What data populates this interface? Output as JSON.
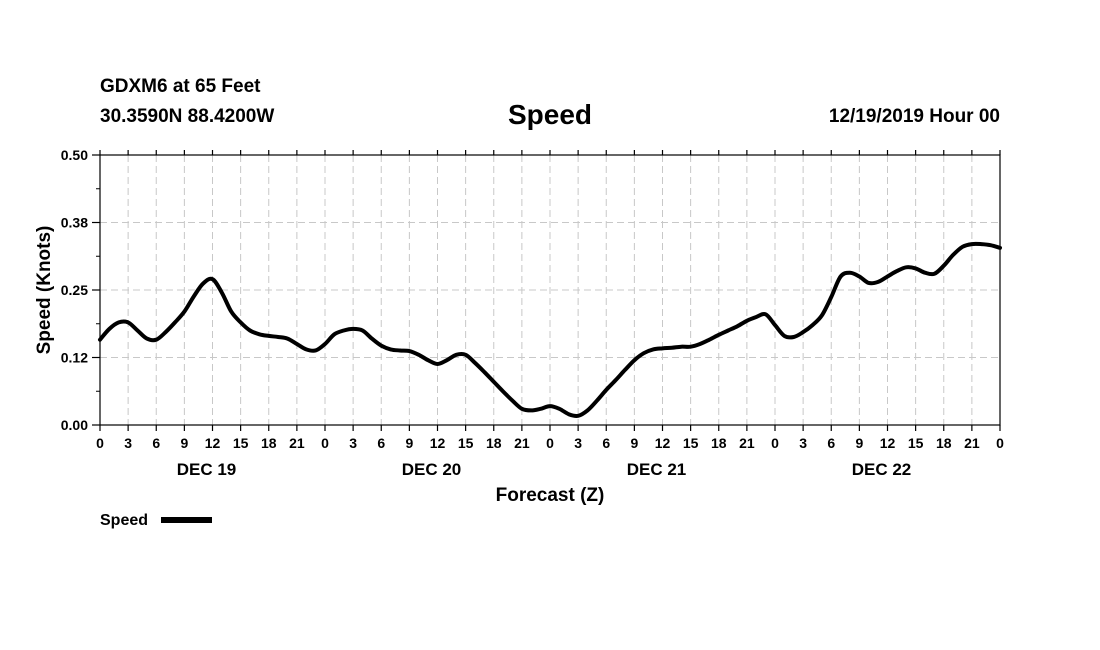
{
  "header": {
    "station": "GDXM6 at 65 Feet",
    "coords": "30.3590N 88.4200W",
    "title": "Speed",
    "datetime": "12/19/2019 Hour 00"
  },
  "chart_data": {
    "type": "line",
    "title": "Speed",
    "xlabel": "Forecast (Z)",
    "ylabel": "Speed (Knots)",
    "ylim": [
      0,
      0.5
    ],
    "yticks": [
      "0.00",
      "0.12",
      "0.25",
      "0.38",
      "0.50"
    ],
    "xlim_hours": [
      0,
      96
    ],
    "xtick_labels": [
      "0",
      "3",
      "6",
      "9",
      "12",
      "15",
      "18",
      "21",
      "0",
      "3",
      "6",
      "9",
      "12",
      "15",
      "18",
      "21",
      "0",
      "3",
      "6",
      "9",
      "12",
      "15",
      "18",
      "21",
      "0",
      "3",
      "6",
      "9",
      "12",
      "15",
      "18",
      "21",
      "0"
    ],
    "day_labels": [
      "DEC 19",
      "DEC 20",
      "DEC 21",
      "DEC 22"
    ],
    "grid": true,
    "legend": "bottom-left",
    "series": [
      {
        "name": "Speed",
        "color": "#000000",
        "x_hours": [
          0,
          1,
          2,
          3,
          4,
          5,
          6,
          7,
          8,
          9,
          10,
          11,
          12,
          13,
          14,
          15,
          16,
          17,
          18,
          19,
          20,
          21,
          22,
          23,
          24,
          25,
          26,
          27,
          28,
          29,
          30,
          31,
          32,
          33,
          34,
          35,
          36,
          37,
          38,
          39,
          40,
          41,
          42,
          43,
          44,
          45,
          46,
          47,
          48,
          49,
          50,
          51,
          52,
          53,
          54,
          55,
          56,
          57,
          58,
          59,
          60,
          61,
          62,
          63,
          64,
          65,
          66,
          67,
          68,
          69,
          70,
          71,
          72,
          73,
          74,
          75,
          76,
          77,
          78,
          79,
          80,
          81,
          82,
          83,
          84,
          85,
          86,
          87,
          88,
          89,
          90,
          91,
          92,
          93,
          94,
          95,
          96
        ],
        "values": [
          0.158,
          0.178,
          0.19,
          0.19,
          0.175,
          0.16,
          0.158,
          0.172,
          0.19,
          0.21,
          0.238,
          0.262,
          0.27,
          0.245,
          0.21,
          0.19,
          0.175,
          0.168,
          0.165,
          0.163,
          0.16,
          0.15,
          0.14,
          0.138,
          0.15,
          0.168,
          0.175,
          0.178,
          0.175,
          0.16,
          0.147,
          0.14,
          0.138,
          0.137,
          0.13,
          0.12,
          0.113,
          0.12,
          0.13,
          0.13,
          0.115,
          0.098,
          0.08,
          0.062,
          0.045,
          0.03,
          0.027,
          0.03,
          0.035,
          0.03,
          0.02,
          0.017,
          0.027,
          0.045,
          0.065,
          0.083,
          0.102,
          0.12,
          0.133,
          0.14,
          0.142,
          0.143,
          0.145,
          0.145,
          0.15,
          0.158,
          0.167,
          0.175,
          0.183,
          0.193,
          0.2,
          0.205,
          0.185,
          0.165,
          0.163,
          0.172,
          0.185,
          0.203,
          0.237,
          0.275,
          0.282,
          0.275,
          0.263,
          0.265,
          0.275,
          0.285,
          0.292,
          0.29,
          0.282,
          0.28,
          0.295,
          0.315,
          0.33,
          0.335,
          0.335,
          0.333,
          0.328
        ]
      }
    ]
  }
}
